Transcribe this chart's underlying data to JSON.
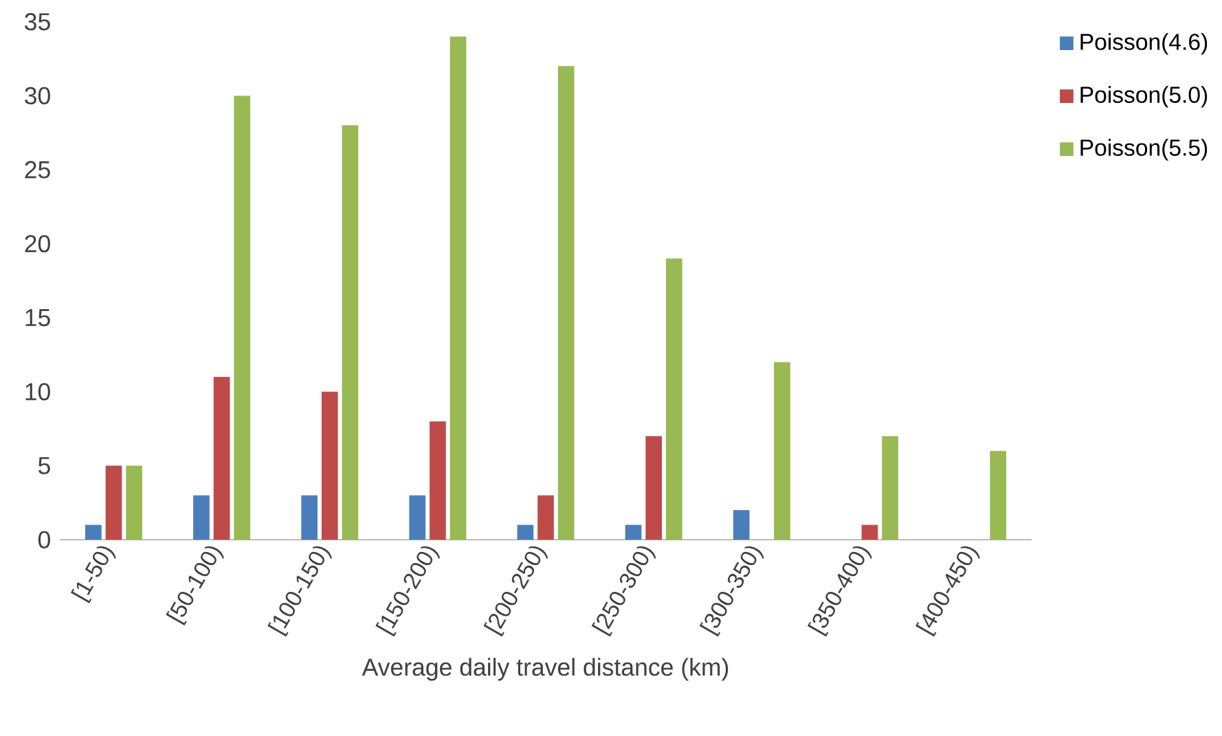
{
  "chart_data": {
    "type": "bar",
    "xlabel": "Average daily travel distance (km)",
    "categories": [
      "[1-50)",
      "[50-100)",
      "[100-150)",
      "[150-200)",
      "[200-250)",
      "[250-300)",
      "[300-350)",
      "[350-400)",
      "[400-450)"
    ],
    "series": [
      {
        "name": "Poisson(4.6)",
        "color": "#4a7ebb",
        "values": [
          1,
          3,
          3,
          3,
          1,
          1,
          2,
          0,
          0
        ]
      },
      {
        "name": "Poisson(5.0)",
        "color": "#be4b48",
        "values": [
          5,
          11,
          10,
          8,
          3,
          7,
          0,
          1,
          0
        ]
      },
      {
        "name": "Poisson(5.5)",
        "color": "#98b954",
        "values": [
          5,
          30,
          28,
          34,
          32,
          19,
          12,
          7,
          6
        ]
      }
    ],
    "ylim": [
      0,
      35
    ],
    "yticks": [
      0,
      5,
      10,
      15,
      20,
      25,
      30,
      35
    ],
    "legend": "top right"
  }
}
